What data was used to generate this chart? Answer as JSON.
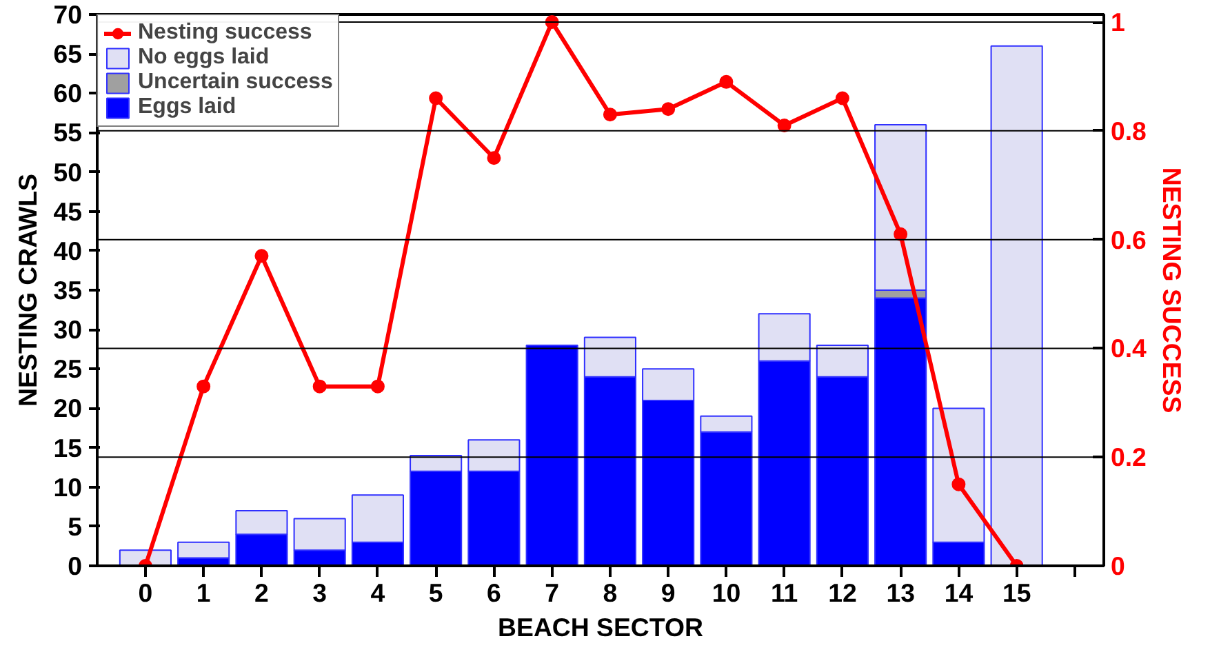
{
  "chart_data": {
    "type": "bar",
    "stacked": true,
    "xlabel": "BEACH SECTOR",
    "ylabel": "NESTING CRAWLS",
    "y2label": "NESTING SUCCESS",
    "x": [
      0,
      1,
      2,
      3,
      4,
      5,
      6,
      7,
      8,
      9,
      10,
      11,
      12,
      13,
      14,
      15
    ],
    "xlim": [
      -0.83,
      16.5
    ],
    "xticks": [
      0,
      1,
      2,
      3,
      4,
      5,
      6,
      7,
      8,
      9,
      10,
      11,
      12,
      13,
      14,
      15,
      {
        "value": 16,
        "label": null
      }
    ],
    "ylim": [
      0,
      70
    ],
    "yticks": [
      0,
      5,
      10,
      15,
      20,
      25,
      30,
      35,
      40,
      45,
      50,
      55,
      60,
      65,
      70
    ],
    "y2lim": [
      0,
      1.014
    ],
    "y2ticks": [
      0,
      0.2,
      0.4,
      0.6,
      0.8,
      1
    ],
    "grid": "y2",
    "legend": "top left",
    "marker": "circle",
    "series": [
      {
        "name": "Eggs laid",
        "color": "#0000ff",
        "values": [
          0,
          1,
          4,
          2,
          3,
          12,
          12,
          28,
          24,
          21,
          17,
          26,
          24,
          34,
          3,
          0
        ]
      },
      {
        "name": "Uncertain success",
        "color": "#a0a0a0",
        "values": [
          0,
          0,
          0,
          0,
          0,
          0,
          0,
          0,
          0,
          0,
          0,
          0,
          0,
          1,
          0,
          0
        ]
      },
      {
        "name": "No eggs laid",
        "color": "#e0e0f4",
        "values": [
          2,
          2,
          3,
          4,
          6,
          2,
          4,
          0,
          5,
          4,
          2,
          6,
          4,
          21,
          17,
          66
        ]
      },
      {
        "name": "Nesting success",
        "type": "line",
        "axis": "y2",
        "color": "#ff0000",
        "values": [
          0,
          0.33,
          0.57,
          0.33,
          0.33,
          0.86,
          0.75,
          1.0,
          0.83,
          0.84,
          0.89,
          0.81,
          0.86,
          0.61,
          0.15,
          0
        ]
      }
    ]
  }
}
